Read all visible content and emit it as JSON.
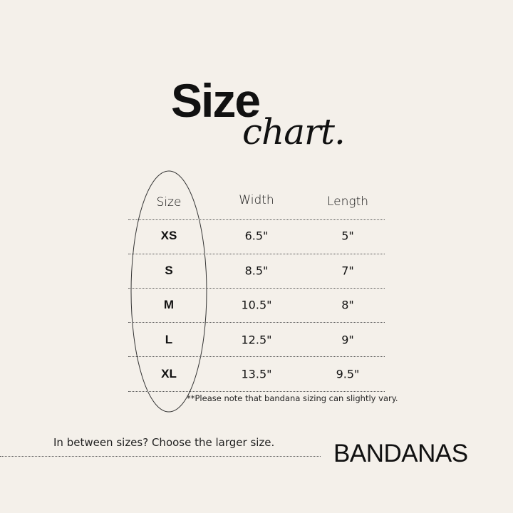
{
  "title": {
    "main": "Size",
    "script": "chart."
  },
  "table": {
    "headers": [
      "Size",
      "Width",
      "Length"
    ],
    "rows": [
      [
        "XS",
        "6.5\"",
        "5\""
      ],
      [
        "S",
        "8.5\"",
        "7\""
      ],
      [
        "M",
        "10.5\"",
        "8\""
      ],
      [
        "L",
        "12.5\"",
        "9\""
      ],
      [
        "XL",
        "13.5\"",
        "9.5\""
      ]
    ]
  },
  "note": "**Please note that bandana sizing can slightly vary.",
  "tip": "In between sizes? Choose the larger size.",
  "brand": "BANDANAS",
  "colors": {
    "background": "#f4f0ea",
    "text": "#111111"
  }
}
